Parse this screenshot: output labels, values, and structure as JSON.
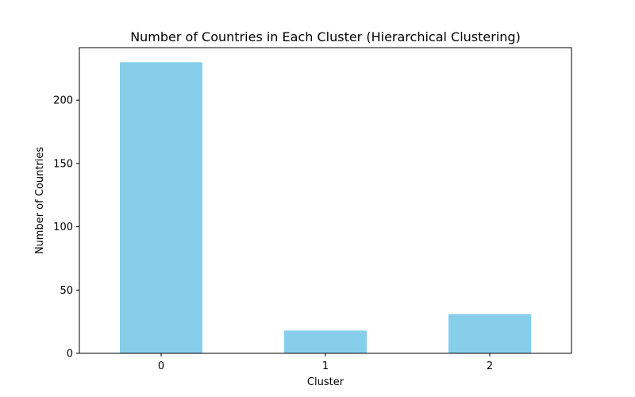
{
  "chart_data": {
    "type": "bar",
    "title": "Number of Countries in Each Cluster (Hierarchical Clustering)",
    "xlabel": "Cluster",
    "ylabel": "Number of Countries",
    "categories": [
      "0",
      "1",
      "2"
    ],
    "values": [
      230,
      18,
      31
    ],
    "ylim": [
      0,
      241.5
    ],
    "yticks": [
      0,
      50,
      100,
      150,
      200
    ],
    "bar_color": "#87ceeb",
    "grid": false,
    "legend": "none"
  }
}
